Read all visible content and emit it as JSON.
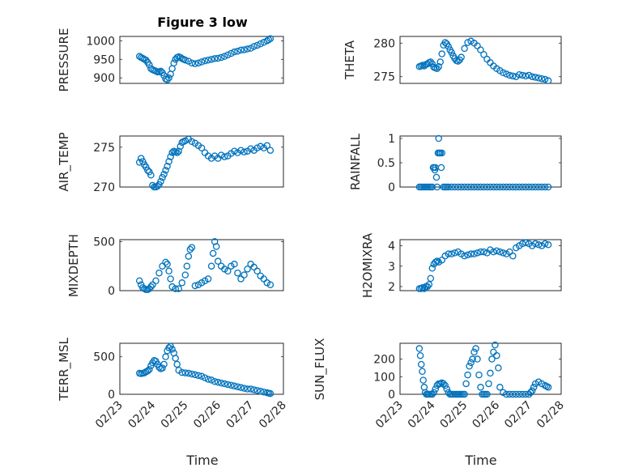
{
  "figure": {
    "title": "Figure 3 low",
    "colors": {
      "marker": "#0072BD",
      "axis": "#262626",
      "grid": "#bcbcbc"
    }
  },
  "chart_data": [
    {
      "id": "pressure",
      "type": "scatter",
      "ylabel": "PRESSURE",
      "ylim": [
        885,
        1012
      ],
      "yticks": [
        900,
        950,
        1000
      ],
      "xlim": [
        0,
        5
      ],
      "xticklabels": [],
      "xlabel": "",
      "grid": true,
      "title": "Figure 3 low",
      "x": [
        0.6,
        0.65,
        0.7,
        0.75,
        0.8,
        0.85,
        0.9,
        0.95,
        1.0,
        1.05,
        1.1,
        1.15,
        1.2,
        1.25,
        1.3,
        1.35,
        1.4,
        1.45,
        1.5,
        1.55,
        1.6,
        1.65,
        1.7,
        1.75,
        1.8,
        1.85,
        1.9,
        1.95,
        2.0,
        2.1,
        2.2,
        2.3,
        2.4,
        2.5,
        2.6,
        2.7,
        2.8,
        2.9,
        3.0,
        3.1,
        3.2,
        3.3,
        3.4,
        3.5,
        3.6,
        3.7,
        3.8,
        3.9,
        4.0,
        4.1,
        4.2,
        4.3,
        4.4,
        4.5,
        4.55,
        4.6
      ],
      "y": [
        958,
        955,
        953,
        950,
        948,
        942,
        935,
        925,
        922,
        920,
        918,
        916,
        916,
        918,
        914,
        906,
        897,
        895,
        900,
        910,
        925,
        940,
        950,
        955,
        957,
        955,
        952,
        950,
        948,
        945,
        940,
        938,
        940,
        943,
        946,
        948,
        950,
        952,
        953,
        955,
        958,
        962,
        966,
        970,
        972,
        975,
        976,
        978,
        980,
        985,
        988,
        992,
        996,
        1000,
        1003,
        1006
      ]
    },
    {
      "id": "theta",
      "type": "scatter",
      "ylabel": "THETA",
      "ylim": [
        274,
        281
      ],
      "yticks": [
        275,
        280
      ],
      "xlim": [
        0,
        5
      ],
      "xticklabels": [],
      "xlabel": "",
      "grid": true,
      "x": [
        0.6,
        0.65,
        0.7,
        0.75,
        0.8,
        0.85,
        0.9,
        0.95,
        1.0,
        1.05,
        1.1,
        1.15,
        1.2,
        1.25,
        1.3,
        1.35,
        1.4,
        1.45,
        1.5,
        1.55,
        1.6,
        1.65,
        1.7,
        1.75,
        1.8,
        1.85,
        1.9,
        2.0,
        2.1,
        2.2,
        2.3,
        2.4,
        2.5,
        2.6,
        2.7,
        2.8,
        2.9,
        3.0,
        3.1,
        3.2,
        3.3,
        3.4,
        3.5,
        3.6,
        3.7,
        3.8,
        3.9,
        4.0,
        4.1,
        4.2,
        4.3,
        4.4,
        4.5,
        4.6
      ],
      "y": [
        276.5,
        276.6,
        276.7,
        276.6,
        276.8,
        276.9,
        277.1,
        277.2,
        276.9,
        276.4,
        276.3,
        276.2,
        276.5,
        277.2,
        278.4,
        279.7,
        280.1,
        279.9,
        279.5,
        279.0,
        278.6,
        278.1,
        277.7,
        277.4,
        277.3,
        277.5,
        277.9,
        279.2,
        280.1,
        280.3,
        280.0,
        279.6,
        279.0,
        278.3,
        277.6,
        277.1,
        276.6,
        276.2,
        275.9,
        275.6,
        275.4,
        275.2,
        275.1,
        275.0,
        275.3,
        275.2,
        275.1,
        275.2,
        275.0,
        274.9,
        274.8,
        274.7,
        274.6,
        274.4
      ]
    },
    {
      "id": "air_temp",
      "type": "scatter",
      "ylabel": "AIR_TEMP",
      "ylim": [
        270,
        276.4
      ],
      "yticks": [
        270,
        275
      ],
      "xlim": [
        0,
        5
      ],
      "xticklabels": [],
      "xlabel": "",
      "grid": true,
      "x": [
        0.6,
        0.65,
        0.7,
        0.75,
        0.8,
        0.85,
        0.9,
        0.95,
        1.0,
        1.05,
        1.1,
        1.15,
        1.2,
        1.25,
        1.3,
        1.35,
        1.4,
        1.45,
        1.5,
        1.55,
        1.6,
        1.65,
        1.7,
        1.75,
        1.8,
        1.85,
        1.9,
        1.95,
        2.0,
        2.1,
        2.2,
        2.3,
        2.4,
        2.5,
        2.6,
        2.7,
        2.8,
        2.9,
        3.0,
        3.1,
        3.2,
        3.3,
        3.4,
        3.5,
        3.6,
        3.7,
        3.8,
        3.9,
        4.0,
        4.1,
        4.2,
        4.3,
        4.4,
        4.5,
        4.6
      ],
      "y": [
        273.1,
        273.6,
        273.2,
        272.8,
        272.5,
        272.1,
        271.9,
        271.5,
        270.2,
        270.0,
        270.0,
        270.1,
        270.3,
        270.7,
        271.2,
        271.6,
        272.1,
        272.6,
        273.2,
        273.8,
        274.3,
        274.5,
        274.4,
        274.3,
        274.5,
        275.1,
        275.6,
        275.7,
        275.8,
        276.0,
        275.7,
        275.5,
        275.2,
        274.9,
        274.3,
        273.9,
        273.6,
        273.9,
        273.6,
        274.0,
        273.8,
        273.9,
        274.2,
        274.5,
        274.3,
        274.6,
        274.4,
        274.5,
        274.8,
        274.6,
        274.9,
        275.1,
        274.9,
        275.2,
        274.6
      ]
    },
    {
      "id": "rainfall",
      "type": "scatter",
      "ylabel": "RAINFALL",
      "ylim": [
        0,
        1.05
      ],
      "yticks": [
        0,
        0.5,
        1
      ],
      "xlim": [
        0,
        5
      ],
      "xticklabels": [],
      "xlabel": "",
      "grid": true,
      "x": [
        0.6,
        0.65,
        0.7,
        0.75,
        0.8,
        0.85,
        0.9,
        0.95,
        1.0,
        1.03,
        1.05,
        1.08,
        1.1,
        1.13,
        1.15,
        1.18,
        1.2,
        1.22,
        1.25,
        1.28,
        1.3,
        1.35,
        1.4,
        1.45,
        1.5,
        1.6,
        1.7,
        1.8,
        1.9,
        2.0,
        2.1,
        2.2,
        2.3,
        2.4,
        2.5,
        2.6,
        2.7,
        2.8,
        2.9,
        3.0,
        3.1,
        3.2,
        3.3,
        3.4,
        3.5,
        3.6,
        3.7,
        3.8,
        3.9,
        4.0,
        4.1,
        4.2,
        4.3,
        4.4,
        4.5,
        4.6
      ],
      "y": [
        0,
        0,
        0,
        0,
        0,
        0,
        0,
        0,
        0,
        0.4,
        0.4,
        0.35,
        0.4,
        0.2,
        0,
        0.7,
        1.0,
        0.7,
        0.7,
        0.4,
        0.7,
        0,
        0,
        0,
        0,
        0,
        0,
        0,
        0,
        0,
        0,
        0,
        0,
        0,
        0,
        0,
        0,
        0,
        0,
        0,
        0,
        0,
        0,
        0,
        0,
        0,
        0,
        0,
        0,
        0,
        0,
        0,
        0,
        0,
        0,
        0
      ]
    },
    {
      "id": "mixdepth",
      "type": "scatter",
      "ylabel": "MIXDEPTH",
      "ylim": [
        0,
        520
      ],
      "yticks": [
        0,
        500
      ],
      "xlim": [
        0,
        5
      ],
      "xticklabels": [],
      "xlabel": "",
      "grid": true,
      "x": [
        0.6,
        0.65,
        0.7,
        0.75,
        0.8,
        0.85,
        0.9,
        0.95,
        1.0,
        1.1,
        1.2,
        1.3,
        1.4,
        1.45,
        1.5,
        1.55,
        1.6,
        1.7,
        1.8,
        1.9,
        2.0,
        2.05,
        2.1,
        2.15,
        2.2,
        2.3,
        2.4,
        2.5,
        2.6,
        2.7,
        2.8,
        2.85,
        2.9,
        2.95,
        3.0,
        3.1,
        3.2,
        3.3,
        3.4,
        3.5,
        3.6,
        3.7,
        3.8,
        3.9,
        4.0,
        4.1,
        4.2,
        4.3,
        4.4,
        4.5,
        4.6
      ],
      "y": [
        100,
        60,
        30,
        20,
        10,
        10,
        20,
        40,
        60,
        100,
        180,
        250,
        290,
        270,
        200,
        120,
        40,
        20,
        20,
        80,
        160,
        250,
        350,
        420,
        440,
        50,
        60,
        80,
        100,
        120,
        250,
        380,
        500,
        450,
        300,
        250,
        220,
        200,
        250,
        270,
        180,
        120,
        160,
        220,
        270,
        240,
        200,
        150,
        120,
        80,
        60
      ]
    },
    {
      "id": "h2omixra",
      "type": "scatter",
      "ylabel": "H2OMIXRA",
      "ylim": [
        1.8,
        4.3
      ],
      "yticks": [
        2,
        3,
        4
      ],
      "xlim": [
        0,
        5
      ],
      "xticklabels": [],
      "xlabel": "",
      "grid": true,
      "x": [
        0.6,
        0.65,
        0.7,
        0.75,
        0.8,
        0.85,
        0.9,
        0.95,
        1.0,
        1.05,
        1.1,
        1.15,
        1.2,
        1.3,
        1.4,
        1.5,
        1.6,
        1.7,
        1.8,
        1.9,
        2.0,
        2.1,
        2.2,
        2.3,
        2.4,
        2.5,
        2.6,
        2.7,
        2.8,
        2.9,
        3.0,
        3.1,
        3.2,
        3.3,
        3.4,
        3.5,
        3.6,
        3.7,
        3.8,
        3.9,
        4.0,
        4.1,
        4.2,
        4.3,
        4.4,
        4.5,
        4.6
      ],
      "y": [
        1.9,
        1.9,
        1.95,
        1.9,
        2.0,
        2.0,
        2.1,
        2.4,
        2.9,
        3.1,
        3.2,
        3.25,
        3.2,
        3.3,
        3.5,
        3.6,
        3.6,
        3.65,
        3.7,
        3.6,
        3.5,
        3.55,
        3.6,
        3.6,
        3.65,
        3.7,
        3.7,
        3.65,
        3.8,
        3.7,
        3.75,
        3.7,
        3.65,
        3.6,
        3.7,
        3.5,
        3.9,
        4.0,
        4.1,
        4.15,
        4.1,
        4.0,
        4.1,
        4.05,
        4.0,
        4.1,
        4.05
      ]
    },
    {
      "id": "terr_msl",
      "type": "scatter",
      "ylabel": "TERR_MSL",
      "ylim": [
        0,
        680
      ],
      "yticks": [
        0,
        500
      ],
      "xlim": [
        0,
        5
      ],
      "xticklabels": [
        "02/23",
        "02/24",
        "02/25",
        "02/26",
        "02/27",
        "02/28"
      ],
      "xlabel": "Time",
      "grid": true,
      "x": [
        0.6,
        0.65,
        0.7,
        0.75,
        0.8,
        0.85,
        0.9,
        0.95,
        1.0,
        1.05,
        1.1,
        1.15,
        1.2,
        1.25,
        1.3,
        1.35,
        1.4,
        1.45,
        1.5,
        1.55,
        1.6,
        1.65,
        1.7,
        1.75,
        1.8,
        1.9,
        2.0,
        2.1,
        2.2,
        2.3,
        2.4,
        2.5,
        2.6,
        2.7,
        2.8,
        2.9,
        3.0,
        3.1,
        3.2,
        3.3,
        3.4,
        3.5,
        3.6,
        3.7,
        3.8,
        3.9,
        4.0,
        4.1,
        4.2,
        4.3,
        4.4,
        4.5,
        4.55,
        4.6
      ],
      "y": [
        280,
        275,
        280,
        285,
        300,
        310,
        330,
        380,
        420,
        450,
        440,
        400,
        360,
        340,
        350,
        400,
        500,
        580,
        620,
        640,
        600,
        550,
        480,
        400,
        320,
        290,
        285,
        280,
        270,
        260,
        250,
        240,
        220,
        200,
        190,
        170,
        160,
        150,
        140,
        130,
        120,
        110,
        100,
        90,
        80,
        70,
        70,
        60,
        50,
        40,
        30,
        20,
        15,
        10
      ]
    },
    {
      "id": "sun_flux",
      "type": "scatter",
      "ylabel": "SUN_FLUX",
      "ylim": [
        0,
        290
      ],
      "yticks": [
        0,
        100,
        200
      ],
      "xlim": [
        0,
        5
      ],
      "xticklabels": [
        "02/23",
        "02/24",
        "02/25",
        "02/26",
        "02/27",
        "02/28"
      ],
      "xlabel": "Time",
      "grid": true,
      "x": [
        0.6,
        0.63,
        0.66,
        0.69,
        0.72,
        0.75,
        0.78,
        0.82,
        0.86,
        0.9,
        0.95,
        1.0,
        1.05,
        1.1,
        1.15,
        1.2,
        1.25,
        1.3,
        1.35,
        1.4,
        1.45,
        1.5,
        1.55,
        1.6,
        1.65,
        1.7,
        1.75,
        1.8,
        1.85,
        1.9,
        1.95,
        2.0,
        2.05,
        2.1,
        2.15,
        2.2,
        2.25,
        2.3,
        2.35,
        2.4,
        2.45,
        2.5,
        2.55,
        2.6,
        2.65,
        2.7,
        2.75,
        2.8,
        2.85,
        2.9,
        2.95,
        3.0,
        3.05,
        3.1,
        3.2,
        3.3,
        3.4,
        3.5,
        3.6,
        3.7,
        3.8,
        3.9,
        4.0,
        4.05,
        4.1,
        4.15,
        4.2,
        4.3,
        4.4,
        4.5,
        4.55,
        4.6
      ],
      "y": [
        260,
        220,
        170,
        130,
        80,
        40,
        10,
        0,
        0,
        0,
        0,
        0,
        10,
        30,
        50,
        60,
        60,
        65,
        60,
        50,
        30,
        10,
        0,
        0,
        0,
        0,
        0,
        0,
        0,
        0,
        0,
        0,
        60,
        110,
        160,
        180,
        200,
        240,
        260,
        200,
        110,
        40,
        0,
        0,
        0,
        0,
        60,
        120,
        200,
        240,
        280,
        220,
        150,
        40,
        10,
        0,
        0,
        0,
        0,
        0,
        0,
        0,
        0,
        10,
        20,
        40,
        60,
        70,
        60,
        50,
        45,
        40
      ]
    }
  ]
}
